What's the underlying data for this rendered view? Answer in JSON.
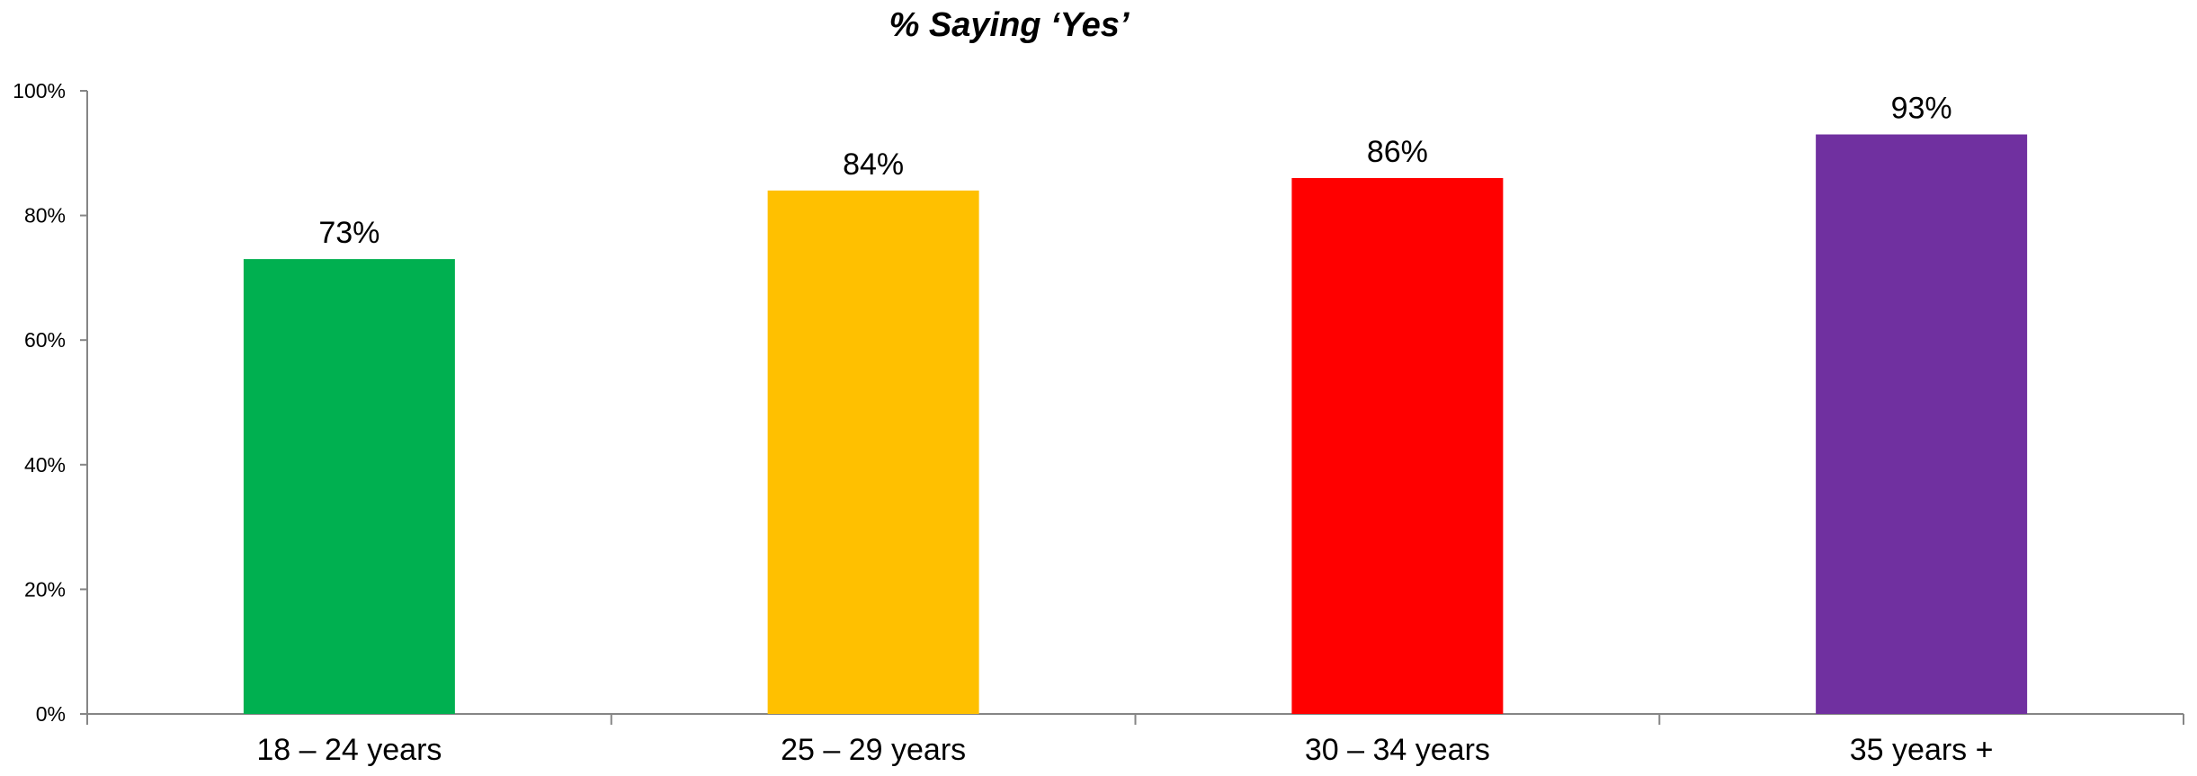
{
  "chart_data": {
    "type": "bar",
    "title": "% Saying ‘Yes’",
    "xlabel": "",
    "ylabel": "",
    "categories": [
      "18 – 24 years",
      "25 – 29 years",
      "30 – 34 years",
      "35 years +"
    ],
    "values": [
      73,
      84,
      86,
      93
    ],
    "data_labels": [
      "73%",
      "84%",
      "86%",
      "93%"
    ],
    "colors": [
      "#00B050",
      "#FFC000",
      "#FF0000",
      "#7030A0"
    ],
    "ylim": [
      0,
      100
    ],
    "y_ticks": [
      0,
      20,
      40,
      60,
      80,
      100
    ],
    "y_tick_labels": [
      "0%",
      "20%",
      "40%",
      "60%",
      "80%",
      "100%"
    ],
    "grid": false,
    "legend": "none"
  }
}
